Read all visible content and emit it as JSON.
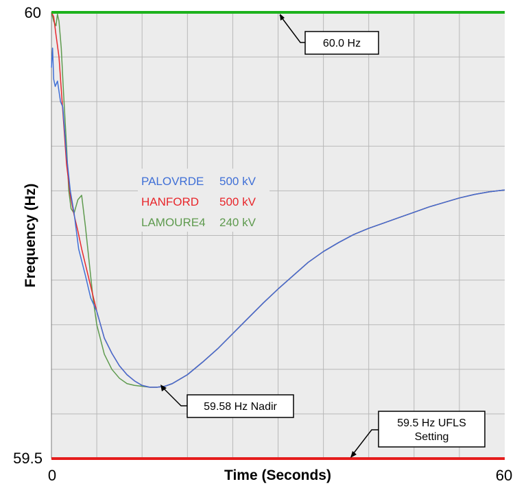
{
  "chart_data": {
    "type": "line",
    "xlabel": "Time (Seconds)",
    "ylabel": "Frequency (Hz)",
    "xlim": [
      0,
      60
    ],
    "ylim": [
      59.5,
      60
    ],
    "x_tick_labels": [
      "0",
      "60"
    ],
    "y_tick_labels": [
      "59.5",
      "60"
    ],
    "grid": true,
    "x_grid_step": 6,
    "y_grid_step": 0.05,
    "plot_background": "#ececec",
    "grid_color": "#b8b8b8",
    "legend_position": "left-center",
    "series": [
      {
        "name": "PALOVRDE",
        "voltage": "500 kV",
        "color": "#3f6fd6",
        "x": [
          0,
          0.15,
          0.3,
          0.5,
          0.8,
          1.2,
          1.5,
          2,
          2.5,
          3,
          3.6,
          4.5,
          5.2,
          6,
          7,
          8,
          9,
          10,
          11,
          12,
          13,
          14,
          15,
          16,
          18,
          20,
          22,
          24,
          26,
          28,
          30,
          32,
          34,
          36,
          38,
          40,
          42,
          44,
          46,
          48,
          50,
          52,
          54,
          56,
          58,
          60
        ],
        "y": [
          59.938,
          59.96,
          59.925,
          59.917,
          59.923,
          59.9,
          59.894,
          59.84,
          59.8,
          59.775,
          59.735,
          59.705,
          59.68,
          59.665,
          59.635,
          59.618,
          59.604,
          59.594,
          59.587,
          59.582,
          59.58,
          59.58,
          59.581,
          59.584,
          59.594,
          59.608,
          59.623,
          59.64,
          59.657,
          59.674,
          59.69,
          59.705,
          59.72,
          59.732,
          59.742,
          59.751,
          59.758,
          59.764,
          59.77,
          59.776,
          59.782,
          59.787,
          59.792,
          59.796,
          59.799,
          59.801
        ]
      },
      {
        "name": "HANFORD",
        "voltage": "500 kV",
        "color": "#e8262b",
        "x": [
          0,
          0.3,
          0.6,
          1,
          1.5,
          2,
          2.5,
          3,
          3.5,
          4,
          5,
          6,
          7,
          8,
          9,
          10,
          11,
          12,
          13,
          14,
          15,
          16,
          18,
          20,
          22,
          24,
          26,
          28,
          30,
          32,
          34,
          36,
          38,
          40,
          42,
          44,
          46,
          48,
          50,
          52,
          54,
          56,
          58,
          60
        ],
        "y": [
          60,
          59.995,
          59.975,
          59.95,
          59.89,
          59.83,
          59.795,
          59.773,
          59.755,
          59.735,
          59.7,
          59.665,
          59.635,
          59.618,
          59.604,
          59.594,
          59.587,
          59.582,
          59.58,
          59.58,
          59.581,
          59.584,
          59.594,
          59.608,
          59.623,
          59.64,
          59.657,
          59.674,
          59.69,
          59.705,
          59.72,
          59.732,
          59.742,
          59.751,
          59.758,
          59.764,
          59.77,
          59.776,
          59.782,
          59.787,
          59.792,
          59.796,
          59.799,
          59.801
        ]
      },
      {
        "name": "LAMOURE4",
        "voltage": "240 kV",
        "color": "#5e9a4e",
        "x": [
          0,
          0.3,
          0.6,
          0.8,
          1,
          1.3,
          1.6,
          2,
          2.3,
          2.6,
          3,
          3.5,
          4,
          4.5,
          5,
          5.5,
          6,
          7,
          8,
          9,
          10,
          11,
          12,
          13,
          14,
          15,
          16,
          18,
          20,
          22,
          24,
          26,
          28,
          30,
          32,
          34,
          36,
          38,
          40,
          42,
          44,
          46,
          48,
          50,
          52,
          54,
          56,
          58,
          60
        ],
        "y": [
          60,
          59.99,
          59.985,
          59.998,
          59.99,
          59.96,
          59.91,
          59.85,
          59.8,
          59.78,
          59.775,
          59.79,
          59.795,
          59.76,
          59.72,
          59.68,
          59.65,
          59.617,
          59.6,
          59.59,
          59.584,
          59.582,
          59.581,
          59.58,
          59.58,
          59.581,
          59.584,
          59.594,
          59.608,
          59.623,
          59.64,
          59.657,
          59.674,
          59.69,
          59.705,
          59.72,
          59.732,
          59.742,
          59.751,
          59.758,
          59.764,
          59.77,
          59.776,
          59.782,
          59.787,
          59.792,
          59.796,
          59.799,
          59.801
        ]
      }
    ],
    "reference_lines": [
      {
        "value": 60.0,
        "color": "#1db21d"
      },
      {
        "value": 59.5,
        "color": "#e51d1d"
      }
    ],
    "annotations": [
      {
        "text": "60.0 Hz",
        "point_x": 30,
        "point_y": 60.0,
        "box_anchor_x": 37.5,
        "box_anchor_y": 59.96
      },
      {
        "text": "59.58 Hz Nadir",
        "point_x": 14.5,
        "point_y": 59.58,
        "box_anchor_x": 21,
        "box_anchor_y": 59.545
      },
      {
        "text": "59.5 Hz UFLS Setting",
        "lines": [
          "59.5 Hz UFLS",
          "Setting"
        ],
        "point_x": 40,
        "point_y": 59.5,
        "box_anchor_x": 45.5,
        "box_anchor_y": 59.537
      }
    ]
  }
}
